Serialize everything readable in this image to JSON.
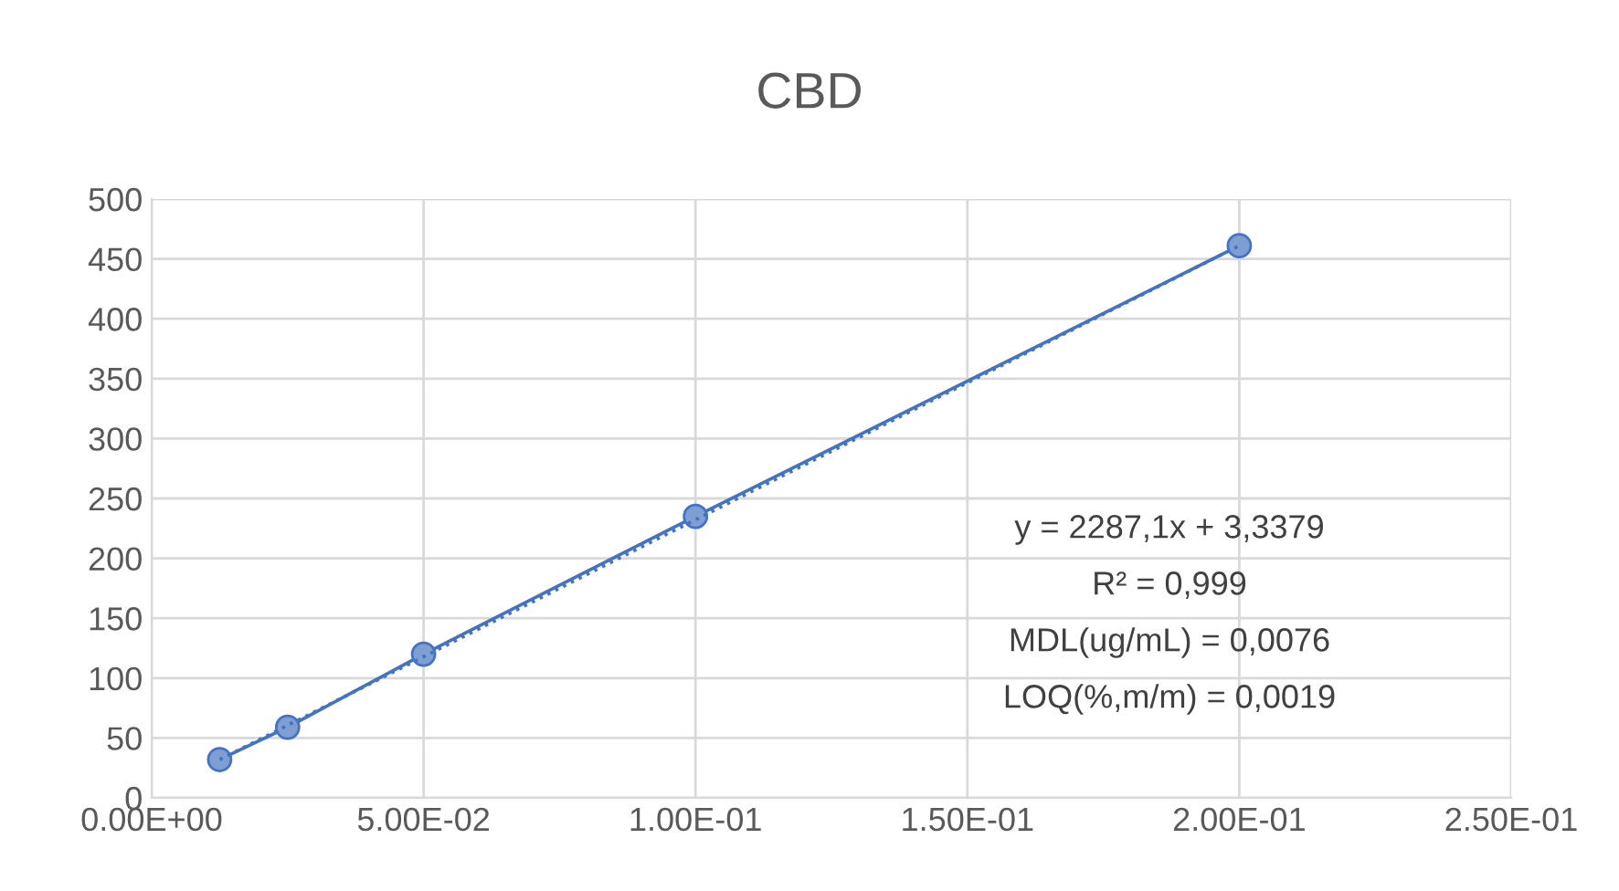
{
  "chart_data": {
    "type": "line",
    "title": "CBD",
    "series": [
      {
        "color": "#4472c4",
        "x": [
          0.0125,
          0.025,
          0.05,
          0.1,
          0.2
        ],
        "values": [
          32,
          59,
          120,
          235,
          461
        ],
        "marker": "circle",
        "line_style": "solid"
      },
      {
        "color": "#4472c4",
        "x": [
          0.0125,
          0.2
        ],
        "values": [
          32,
          461
        ],
        "marker": "none",
        "line_style": "dotted"
      }
    ],
    "xlim": [
      0,
      0.25
    ],
    "xticks": [
      {
        "value": 0,
        "label": "0.00E+00"
      },
      {
        "value": 0.05,
        "label": "5.00E-02"
      },
      {
        "value": 0.1,
        "label": "1.00E-01"
      },
      {
        "value": 0.15,
        "label": "1.50E-01"
      },
      {
        "value": 0.2,
        "label": "2.00E-01"
      },
      {
        "value": 0.25,
        "label": "2.50E-01"
      }
    ],
    "ylim": [
      0,
      500
    ],
    "yticks": [
      0,
      50,
      100,
      150,
      200,
      250,
      300,
      350,
      400,
      450,
      500
    ],
    "grid": true,
    "annotations": [
      "y = 2287,1x + 3,3379",
      "R² = 0,999",
      "MDL(ug/mL) = 0,0076",
      "LOQ(%,m/m) = 0,0019"
    ]
  }
}
